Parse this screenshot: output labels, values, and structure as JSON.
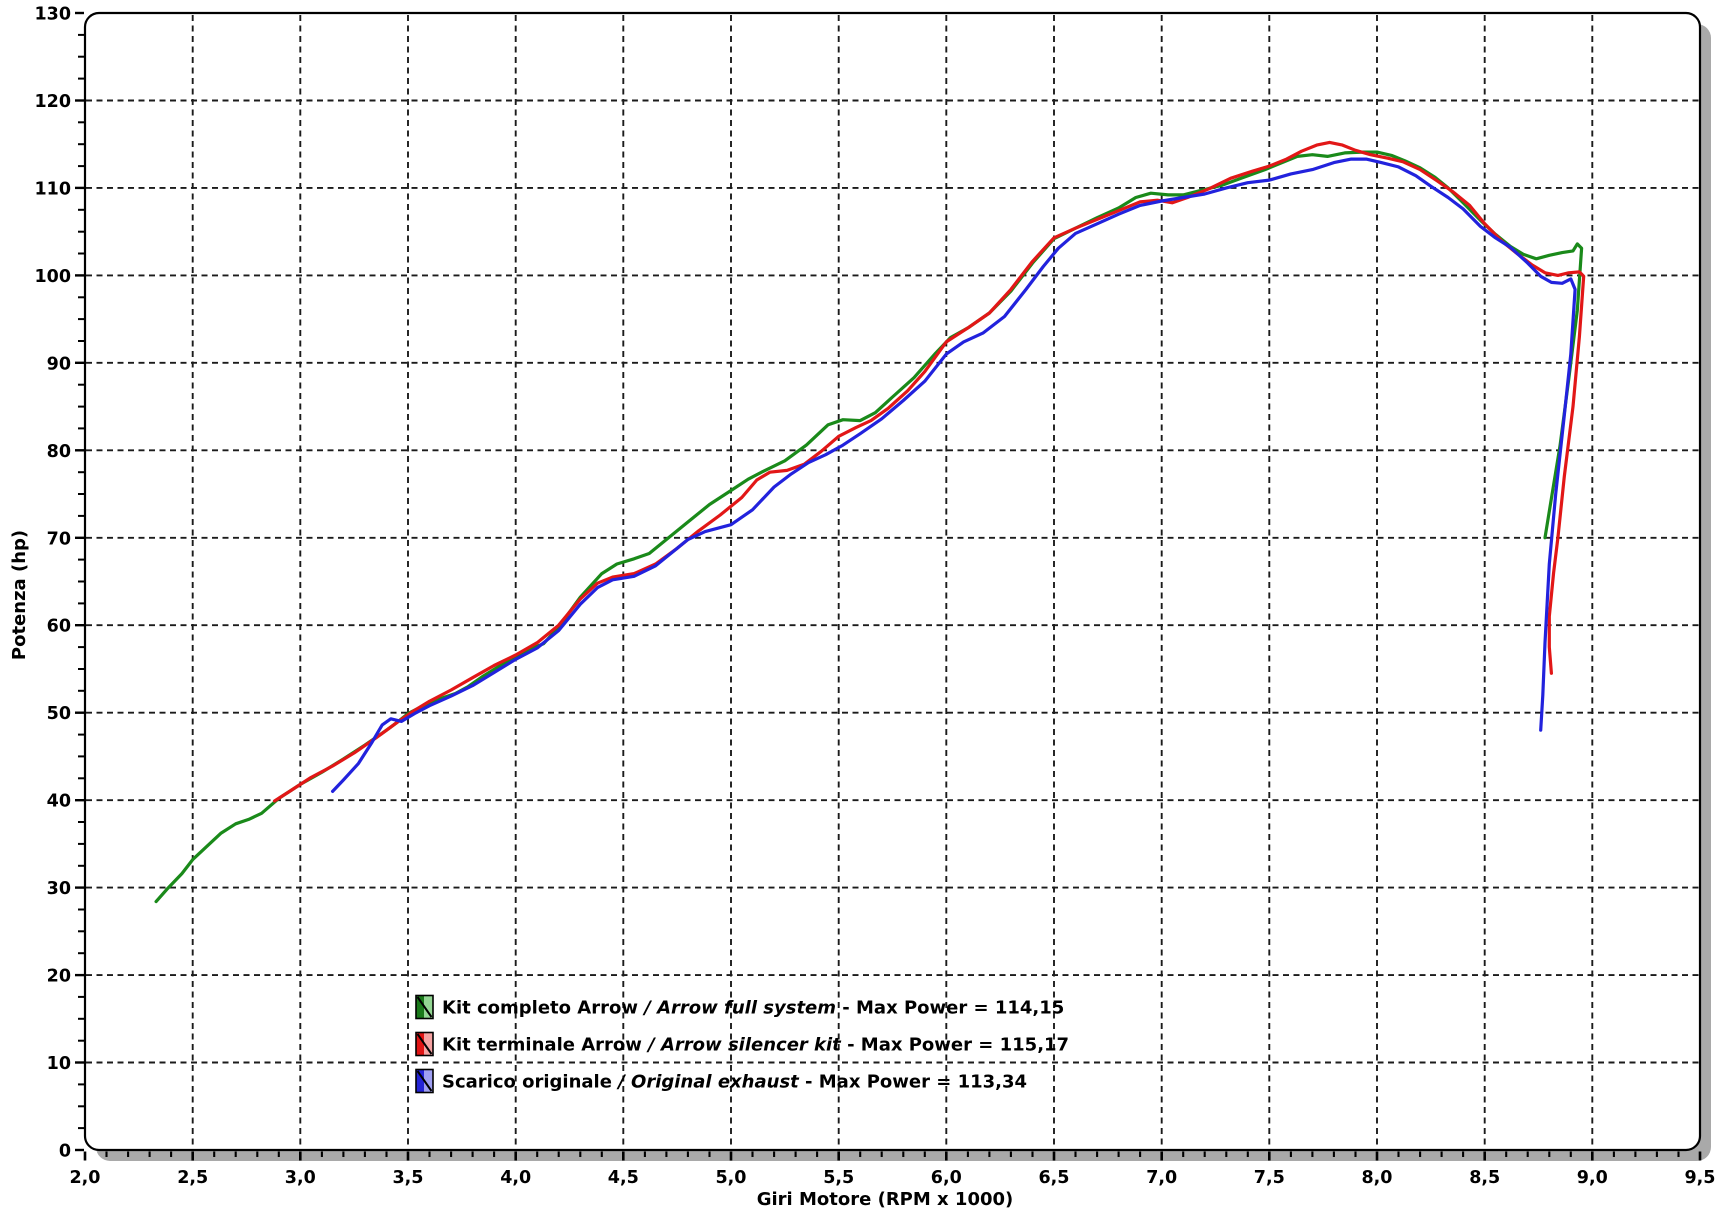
{
  "chart_data": {
    "type": "line",
    "title": "",
    "xlabel": "Giri Motore (RPM x 1000)",
    "ylabel": "Potenza (hp)",
    "xlim": [
      2.0,
      9.5
    ],
    "ylim": [
      0,
      130
    ],
    "x_major_step": 0.5,
    "x_minor_step": 0.1,
    "y_major_step": 10,
    "y_minor_step": 2.5,
    "grid": "dashed lines on major ticks, both axes",
    "legend_position": "inside-bottom-center",
    "x_tick_labels": [
      "2,0",
      "2,5",
      "3,0",
      "3,5",
      "4,0",
      "4,5",
      "5,0",
      "5,5",
      "6,0",
      "6,5",
      "7,0",
      "7,5",
      "8,0",
      "8,5",
      "9,0",
      "9,5"
    ],
    "y_tick_labels": [
      "0",
      "10",
      "20",
      "30",
      "40",
      "50",
      "60",
      "70",
      "80",
      "90",
      "100",
      "110",
      "120",
      "130"
    ],
    "series": [
      {
        "id": "arrow-full-system",
        "name": "Kit completo Arrow / Arrow full system",
        "color": "#1a8a1a",
        "max_power": "114,15",
        "points": [
          [
            2.33,
            28.4
          ],
          [
            2.38,
            29.8
          ],
          [
            2.45,
            31.6
          ],
          [
            2.5,
            33.2
          ],
          [
            2.57,
            34.8
          ],
          [
            2.63,
            36.2
          ],
          [
            2.7,
            37.3
          ],
          [
            2.76,
            37.8
          ],
          [
            2.82,
            38.5
          ],
          [
            2.9,
            40.2
          ],
          [
            3.0,
            41.8
          ],
          [
            3.1,
            43.2
          ],
          [
            3.2,
            44.7
          ],
          [
            3.3,
            46.3
          ],
          [
            3.4,
            48.0
          ],
          [
            3.45,
            48.9
          ],
          [
            3.5,
            49.9
          ],
          [
            3.58,
            50.9
          ],
          [
            3.65,
            51.6
          ],
          [
            3.72,
            52.2
          ],
          [
            3.78,
            53.0
          ],
          [
            3.85,
            54.2
          ],
          [
            3.95,
            55.7
          ],
          [
            4.0,
            56.3
          ],
          [
            4.07,
            57.3
          ],
          [
            4.13,
            57.9
          ],
          [
            4.2,
            59.8
          ],
          [
            4.3,
            63.2
          ],
          [
            4.4,
            65.9
          ],
          [
            4.47,
            67.0
          ],
          [
            4.55,
            67.6
          ],
          [
            4.62,
            68.2
          ],
          [
            4.7,
            69.8
          ],
          [
            4.8,
            71.8
          ],
          [
            4.9,
            73.8
          ],
          [
            5.0,
            75.4
          ],
          [
            5.08,
            76.7
          ],
          [
            5.15,
            77.6
          ],
          [
            5.25,
            78.8
          ],
          [
            5.35,
            80.6
          ],
          [
            5.45,
            82.9
          ],
          [
            5.52,
            83.5
          ],
          [
            5.6,
            83.4
          ],
          [
            5.67,
            84.3
          ],
          [
            5.75,
            86.1
          ],
          [
            5.85,
            88.3
          ],
          [
            5.95,
            91.1
          ],
          [
            6.02,
            92.9
          ],
          [
            6.1,
            94.0
          ],
          [
            6.2,
            95.7
          ],
          [
            6.3,
            98.2
          ],
          [
            6.4,
            101.4
          ],
          [
            6.5,
            104.2
          ],
          [
            6.6,
            105.4
          ],
          [
            6.7,
            106.6
          ],
          [
            6.8,
            107.7
          ],
          [
            6.88,
            108.9
          ],
          [
            6.95,
            109.4
          ],
          [
            7.03,
            109.2
          ],
          [
            7.1,
            109.2
          ],
          [
            7.18,
            109.7
          ],
          [
            7.28,
            110.3
          ],
          [
            7.38,
            111.2
          ],
          [
            7.48,
            112.1
          ],
          [
            7.57,
            113.0
          ],
          [
            7.63,
            113.6
          ],
          [
            7.7,
            113.8
          ],
          [
            7.77,
            113.6
          ],
          [
            7.85,
            114.0
          ],
          [
            7.93,
            114.1
          ],
          [
            8.0,
            114.1
          ],
          [
            8.07,
            113.7
          ],
          [
            8.13,
            113.1
          ],
          [
            8.2,
            112.3
          ],
          [
            8.27,
            111.2
          ],
          [
            8.33,
            110.0
          ],
          [
            8.4,
            108.3
          ],
          [
            8.48,
            106.3
          ],
          [
            8.55,
            104.7
          ],
          [
            8.62,
            103.3
          ],
          [
            8.68,
            102.4
          ],
          [
            8.74,
            101.9
          ],
          [
            8.8,
            102.3
          ],
          [
            8.86,
            102.6
          ],
          [
            8.91,
            102.8
          ],
          [
            8.93,
            103.6
          ],
          [
            8.95,
            103.1
          ],
          [
            8.93,
            96.0
          ],
          [
            8.89,
            88.0
          ],
          [
            8.85,
            80.5
          ],
          [
            8.81,
            74.5
          ],
          [
            8.78,
            70.0
          ]
        ]
      },
      {
        "id": "arrow-silencer-kit",
        "name": "Kit terminale Arrow / Arrow silencer kit",
        "color": "#e21717",
        "max_power": "115,17",
        "points": [
          [
            2.88,
            39.9
          ],
          [
            2.95,
            41.0
          ],
          [
            3.05,
            42.6
          ],
          [
            3.15,
            43.9
          ],
          [
            3.25,
            45.4
          ],
          [
            3.35,
            47.1
          ],
          [
            3.45,
            48.9
          ],
          [
            3.52,
            50.1
          ],
          [
            3.6,
            51.3
          ],
          [
            3.7,
            52.6
          ],
          [
            3.8,
            54.0
          ],
          [
            3.9,
            55.4
          ],
          [
            4.0,
            56.6
          ],
          [
            4.1,
            58.0
          ],
          [
            4.2,
            60.0
          ],
          [
            4.3,
            63.0
          ],
          [
            4.38,
            64.8
          ],
          [
            4.45,
            65.5
          ],
          [
            4.55,
            65.9
          ],
          [
            4.65,
            67.0
          ],
          [
            4.75,
            68.8
          ],
          [
            4.85,
            70.8
          ],
          [
            4.95,
            72.6
          ],
          [
            5.05,
            74.6
          ],
          [
            5.12,
            76.6
          ],
          [
            5.18,
            77.5
          ],
          [
            5.26,
            77.7
          ],
          [
            5.34,
            78.4
          ],
          [
            5.42,
            79.9
          ],
          [
            5.5,
            81.6
          ],
          [
            5.58,
            82.6
          ],
          [
            5.65,
            83.4
          ],
          [
            5.73,
            84.8
          ],
          [
            5.82,
            86.8
          ],
          [
            5.9,
            89.0
          ],
          [
            6.0,
            92.4
          ],
          [
            6.1,
            94.0
          ],
          [
            6.2,
            95.7
          ],
          [
            6.3,
            98.4
          ],
          [
            6.4,
            101.6
          ],
          [
            6.5,
            104.3
          ],
          [
            6.6,
            105.4
          ],
          [
            6.7,
            106.4
          ],
          [
            6.8,
            107.4
          ],
          [
            6.9,
            108.4
          ],
          [
            6.98,
            108.6
          ],
          [
            7.05,
            108.3
          ],
          [
            7.12,
            108.9
          ],
          [
            7.22,
            109.9
          ],
          [
            7.32,
            111.1
          ],
          [
            7.42,
            111.9
          ],
          [
            7.5,
            112.5
          ],
          [
            7.58,
            113.3
          ],
          [
            7.65,
            114.2
          ],
          [
            7.72,
            114.9
          ],
          [
            7.78,
            115.2
          ],
          [
            7.84,
            114.9
          ],
          [
            7.9,
            114.3
          ],
          [
            7.97,
            113.8
          ],
          [
            8.05,
            113.4
          ],
          [
            8.12,
            113.0
          ],
          [
            8.2,
            112.1
          ],
          [
            8.28,
            110.8
          ],
          [
            8.35,
            109.6
          ],
          [
            8.43,
            108.0
          ],
          [
            8.5,
            105.9
          ],
          [
            8.58,
            103.9
          ],
          [
            8.65,
            102.5
          ],
          [
            8.72,
            101.2
          ],
          [
            8.78,
            100.3
          ],
          [
            8.84,
            100.0
          ],
          [
            8.89,
            100.3
          ],
          [
            8.94,
            100.4
          ],
          [
            8.96,
            99.9
          ],
          [
            8.94,
            93.0
          ],
          [
            8.91,
            85.0
          ],
          [
            8.87,
            77.0
          ],
          [
            8.84,
            70.0
          ],
          [
            8.82,
            66.0
          ],
          [
            8.8,
            61.0
          ],
          [
            8.8,
            57.5
          ],
          [
            8.81,
            54.5
          ]
        ]
      },
      {
        "id": "original-exhaust",
        "name": "Scarico originale / Original exhaust",
        "color": "#2222dd",
        "max_power": "113,34",
        "points": [
          [
            3.15,
            41.0
          ],
          [
            3.2,
            42.3
          ],
          [
            3.27,
            44.2
          ],
          [
            3.33,
            46.5
          ],
          [
            3.38,
            48.6
          ],
          [
            3.42,
            49.3
          ],
          [
            3.47,
            49.0
          ],
          [
            3.53,
            49.9
          ],
          [
            3.6,
            50.8
          ],
          [
            3.7,
            51.9
          ],
          [
            3.8,
            53.1
          ],
          [
            3.9,
            54.6
          ],
          [
            4.0,
            56.1
          ],
          [
            4.1,
            57.4
          ],
          [
            4.2,
            59.4
          ],
          [
            4.3,
            62.4
          ],
          [
            4.38,
            64.3
          ],
          [
            4.45,
            65.2
          ],
          [
            4.55,
            65.6
          ],
          [
            4.65,
            66.8
          ],
          [
            4.73,
            68.4
          ],
          [
            4.8,
            69.8
          ],
          [
            4.88,
            70.7
          ],
          [
            5.0,
            71.5
          ],
          [
            5.1,
            73.2
          ],
          [
            5.2,
            75.8
          ],
          [
            5.28,
            77.3
          ],
          [
            5.36,
            78.6
          ],
          [
            5.44,
            79.5
          ],
          [
            5.52,
            80.6
          ],
          [
            5.6,
            81.9
          ],
          [
            5.7,
            83.6
          ],
          [
            5.8,
            85.7
          ],
          [
            5.9,
            87.9
          ],
          [
            6.0,
            91.0
          ],
          [
            6.08,
            92.4
          ],
          [
            6.17,
            93.4
          ],
          [
            6.27,
            95.3
          ],
          [
            6.37,
            98.4
          ],
          [
            6.45,
            101.0
          ],
          [
            6.52,
            103.1
          ],
          [
            6.6,
            104.8
          ],
          [
            6.7,
            105.9
          ],
          [
            6.8,
            107.0
          ],
          [
            6.9,
            108.0
          ],
          [
            7.0,
            108.5
          ],
          [
            7.1,
            108.9
          ],
          [
            7.2,
            109.3
          ],
          [
            7.3,
            110.0
          ],
          [
            7.4,
            110.6
          ],
          [
            7.5,
            110.9
          ],
          [
            7.6,
            111.6
          ],
          [
            7.7,
            112.1
          ],
          [
            7.8,
            112.9
          ],
          [
            7.88,
            113.3
          ],
          [
            7.95,
            113.3
          ],
          [
            8.02,
            112.9
          ],
          [
            8.1,
            112.4
          ],
          [
            8.18,
            111.4
          ],
          [
            8.25,
            110.2
          ],
          [
            8.33,
            108.9
          ],
          [
            8.4,
            107.6
          ],
          [
            8.48,
            105.6
          ],
          [
            8.55,
            104.3
          ],
          [
            8.62,
            103.2
          ],
          [
            8.7,
            101.4
          ],
          [
            8.76,
            99.9
          ],
          [
            8.81,
            99.2
          ],
          [
            8.86,
            99.1
          ],
          [
            8.9,
            99.6
          ],
          [
            8.92,
            98.4
          ],
          [
            8.9,
            91.0
          ],
          [
            8.87,
            84.0
          ],
          [
            8.83,
            75.0
          ],
          [
            8.8,
            67.0
          ],
          [
            8.78,
            58.0
          ],
          [
            8.77,
            52.0
          ],
          [
            8.76,
            48.0
          ]
        ]
      }
    ],
    "legend": {
      "items": [
        {
          "series": "arrow-full-system",
          "swatch_dark": "#1a7a1a",
          "swatch_light": "#93d693",
          "label_it": "Kit completo Arrow",
          "separator": " / ",
          "label_en": "Arrow full system",
          "suffix": " - Max Power = 114,15"
        },
        {
          "series": "arrow-silencer-kit",
          "swatch_dark": "#e01414",
          "swatch_light": "#f5a2a2",
          "label_it": "Kit terminale Arrow",
          "separator": " / ",
          "label_en": "Arrow silencer kit",
          "suffix": " - Max Power = 115,17"
        },
        {
          "series": "original-exhaust",
          "swatch_dark": "#2424d6",
          "swatch_light": "#9f9ff2",
          "label_it": "Scarico originale",
          "separator": " / ",
          "label_en": "Original exhaust",
          "suffix": " - Max Power = 113,34"
        }
      ]
    }
  },
  "colors": {
    "background": "#ffffff",
    "plot_fill": "#ffffff",
    "frame": "#000000",
    "shadow": "#a9a9a9",
    "grid": "#1b1b1b",
    "tick": "#000000",
    "text": "#000000"
  }
}
